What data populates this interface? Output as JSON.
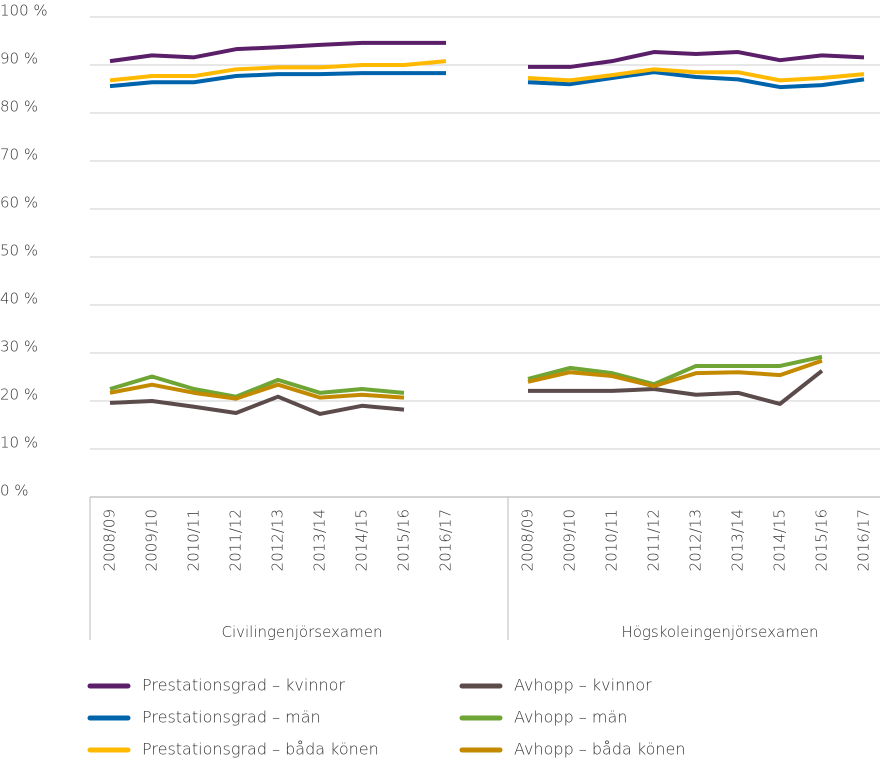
{
  "chart_data": {
    "type": "line",
    "groups": [
      {
        "name": "Civilingenjörsexamen",
        "categories": [
          "2008/09",
          "2009/10",
          "2010/11",
          "2011/12",
          "2012/13",
          "2013/14",
          "2014/15",
          "2015/16",
          "2016/17"
        ]
      },
      {
        "name": "Högskoleingenjörsexamen",
        "categories": [
          "2008/09",
          "2009/10",
          "2010/11",
          "2011/12",
          "2012/13",
          "2013/14",
          "2014/15",
          "2015/16",
          "2016/17"
        ]
      }
    ],
    "series": [
      {
        "name": "Prestationsgrad – kvinnor",
        "color": "#5b1f69",
        "values": [
          [
            90.8,
            92,
            91.6,
            93.3,
            93.7,
            94.2,
            94.6,
            94.6,
            94.6
          ],
          [
            89.6,
            89.6,
            90.8,
            92.7,
            92.3,
            92.7,
            91,
            92,
            91.6
          ]
        ]
      },
      {
        "name": "Prestationsgrad – män",
        "color": "#0064ac",
        "values": [
          [
            85.6,
            86.4,
            86.4,
            87.7,
            88.1,
            88.1,
            88.3,
            88.3,
            88.3
          ],
          [
            86.4,
            86,
            87.3,
            88.5,
            87.5,
            87,
            85.4,
            85.8,
            87
          ]
        ]
      },
      {
        "name": "Prestationsgrad – båda könen",
        "color": "#ffb900",
        "values": [
          [
            86.8,
            87.7,
            87.7,
            89.1,
            89.5,
            89.5,
            90,
            90,
            90.8
          ],
          [
            87.3,
            86.8,
            87.9,
            89.1,
            88.5,
            88.5,
            86.8,
            87.3,
            88.1
          ]
        ]
      },
      {
        "name": "Avhopp – kvinnor",
        "color": "#5b4b4b",
        "values": [
          [
            19.6,
            20,
            18.8,
            17.5,
            20.9,
            17.3,
            19,
            18.2,
            null
          ],
          [
            22.1,
            22.1,
            22.1,
            22.5,
            21.3,
            21.7,
            19.4,
            26.3,
            null
          ]
        ]
      },
      {
        "name": "Avhopp – män",
        "color": "#6ea535",
        "values": [
          [
            22.5,
            25.1,
            22.5,
            20.9,
            24.4,
            21.7,
            22.5,
            21.7,
            null
          ],
          [
            24.6,
            26.9,
            25.8,
            23.5,
            27.3,
            27.3,
            27.3,
            29.2,
            null
          ]
        ]
      },
      {
        "name": "Avhopp – båda könen",
        "color": "#c38a00",
        "values": [
          [
            21.7,
            23.4,
            21.7,
            20.5,
            23.4,
            20.7,
            21.3,
            20.7,
            null
          ],
          [
            24,
            26,
            25.2,
            23.1,
            25.8,
            26,
            25.4,
            28.4,
            null
          ]
        ]
      }
    ],
    "ylim": [
      0,
      100
    ],
    "yticks": [
      {
        "value": 0,
        "label": "0 %"
      },
      {
        "value": 10,
        "label": "10 %"
      },
      {
        "value": 20,
        "label": "20 %"
      },
      {
        "value": 30,
        "label": "30 %"
      },
      {
        "value": 40,
        "label": "40 %"
      },
      {
        "value": 50,
        "label": "50 %"
      },
      {
        "value": 60,
        "label": "60 %"
      },
      {
        "value": 70,
        "label": "70 %"
      },
      {
        "value": 80,
        "label": "80 %"
      },
      {
        "value": 90,
        "label": "90 %"
      },
      {
        "value": 100,
        "label": "100 %"
      }
    ],
    "grid": true
  }
}
